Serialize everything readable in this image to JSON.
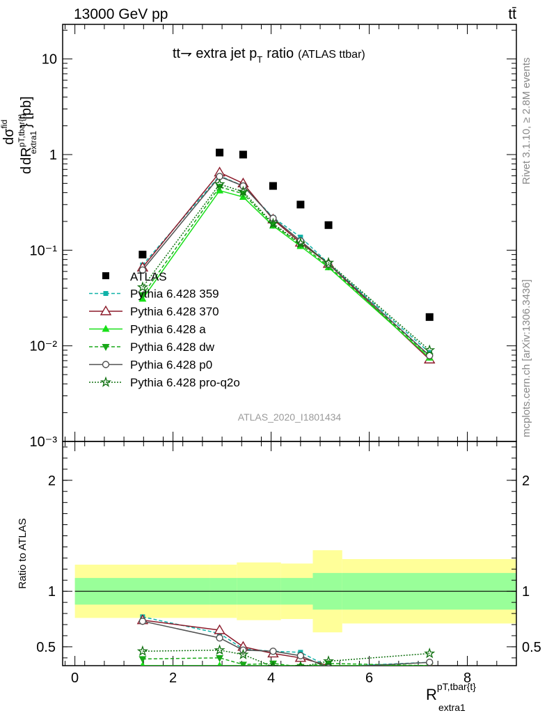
{
  "header": {
    "left": "13000 GeV pp",
    "right": "tt̄",
    "side_top": "Rivet 3.1.10, ≥ 2.8M events",
    "side_bottom": "mcplots.cern.ch [arXiv:1306.3436]"
  },
  "chart_data": {
    "type": "scatter",
    "title": "tt̄ → extra jet p_T ratio",
    "title_main": "tt⇁ extra jet p",
    "title_sub": "T",
    "title_tail": "ratio",
    "title_small": "(ATLAS ttbar)",
    "watermark": "ATLAS_2020_I1801434",
    "ylabel_main": {
      "prefix": "d",
      "num": "dσ",
      "num_sup": "fid",
      "den": "dR",
      "den_sup": "pT,tbar{t}",
      "den_sub": "extra1",
      "suffix": "} [pb]"
    },
    "ylabel_ratio": "Ratio to ATLAS",
    "xlabel": {
      "base": "R",
      "sup": "pT,tbar{t}",
      "sub": "extra1"
    },
    "xlim": [
      -0.25,
      9.0
    ],
    "ylim_main": [
      0.001,
      23
    ],
    "ylim_ratio": [
      0.33,
      2.35
    ],
    "log_y_main": true,
    "x_ticks": [
      "0",
      "2",
      "4",
      "6",
      "8"
    ],
    "y_ticks_main": [
      "10⁻³",
      "10⁻²",
      "10⁻¹",
      "1",
      "10"
    ],
    "y_ticks_ratio": [
      "0.5",
      "1",
      "2"
    ],
    "legend_position": "middle-left",
    "data": {
      "name": "ATLAS",
      "x": [
        1.38,
        2.95,
        3.43,
        4.04,
        4.6,
        5.17,
        7.23
      ],
      "y": [
        0.09,
        1.05,
        1.0,
        0.47,
        0.3,
        0.183,
        0.02
      ]
    },
    "bands": {
      "edges": [
        0.0,
        2.75,
        3.3,
        4.2,
        4.85,
        5.45,
        9.0
      ],
      "inner": [
        0.12,
        0.12,
        0.12,
        0.12,
        0.165,
        0.165
      ],
      "outer": [
        0.24,
        0.24,
        0.26,
        0.25,
        0.37,
        0.29
      ]
    },
    "series": [
      {
        "name": "Pythia 6.428 359",
        "color": "#10b2a8",
        "dash": "5,3",
        "marker": "square",
        "y": [
          0.07,
          0.6,
          0.47,
          0.22,
          0.137,
          0.073,
          0.0085
        ]
      },
      {
        "name": "Pythia 6.428 370",
        "color": "#8b1a2a",
        "dash": "",
        "marker": "triangle-open",
        "y": [
          0.066,
          0.65,
          0.5,
          0.21,
          0.12,
          0.072,
          0.0072
        ]
      },
      {
        "name": "Pythia 6.428 a",
        "color": "#18e018",
        "dash": "",
        "marker": "triangle",
        "y": [
          0.031,
          0.42,
          0.36,
          0.18,
          0.11,
          0.066,
          0.0075
        ]
      },
      {
        "name": "Pythia 6.428 dw",
        "color": "#18a818",
        "dash": "5,3",
        "marker": "triangle-down",
        "y": [
          0.034,
          0.46,
          0.39,
          0.185,
          0.115,
          0.068,
          0.0078
        ]
      },
      {
        "name": "Pythia 6.428 p0",
        "color": "#505050",
        "dash": "",
        "marker": "circle-open",
        "y": [
          0.062,
          0.59,
          0.47,
          0.216,
          0.125,
          0.072,
          0.0079
        ]
      },
      {
        "name": "Pythia 6.428 pro-q2o",
        "color": "#107010",
        "dash": "2,2",
        "marker": "star",
        "y": [
          0.041,
          0.49,
          0.41,
          0.19,
          0.118,
          0.074,
          0.009
        ]
      }
    ],
    "ratios": [
      [
        0.77,
        0.62,
        0.48,
        0.46,
        0.45,
        0.32,
        0.36
      ],
      [
        0.74,
        0.65,
        0.5,
        0.44,
        0.4,
        0.33,
        0.33
      ],
      [
        0.33,
        0.33,
        0.33,
        0.33,
        0.33,
        0.33,
        0.33
      ],
      [
        0.39,
        0.4,
        0.34,
        0.35,
        0.32,
        0.35,
        0.33
      ],
      [
        0.73,
        0.58,
        0.47,
        0.46,
        0.42,
        0.31,
        0.36
      ],
      [
        0.46,
        0.47,
        0.43,
        0.32,
        0.32,
        0.37,
        0.44
      ]
    ]
  }
}
